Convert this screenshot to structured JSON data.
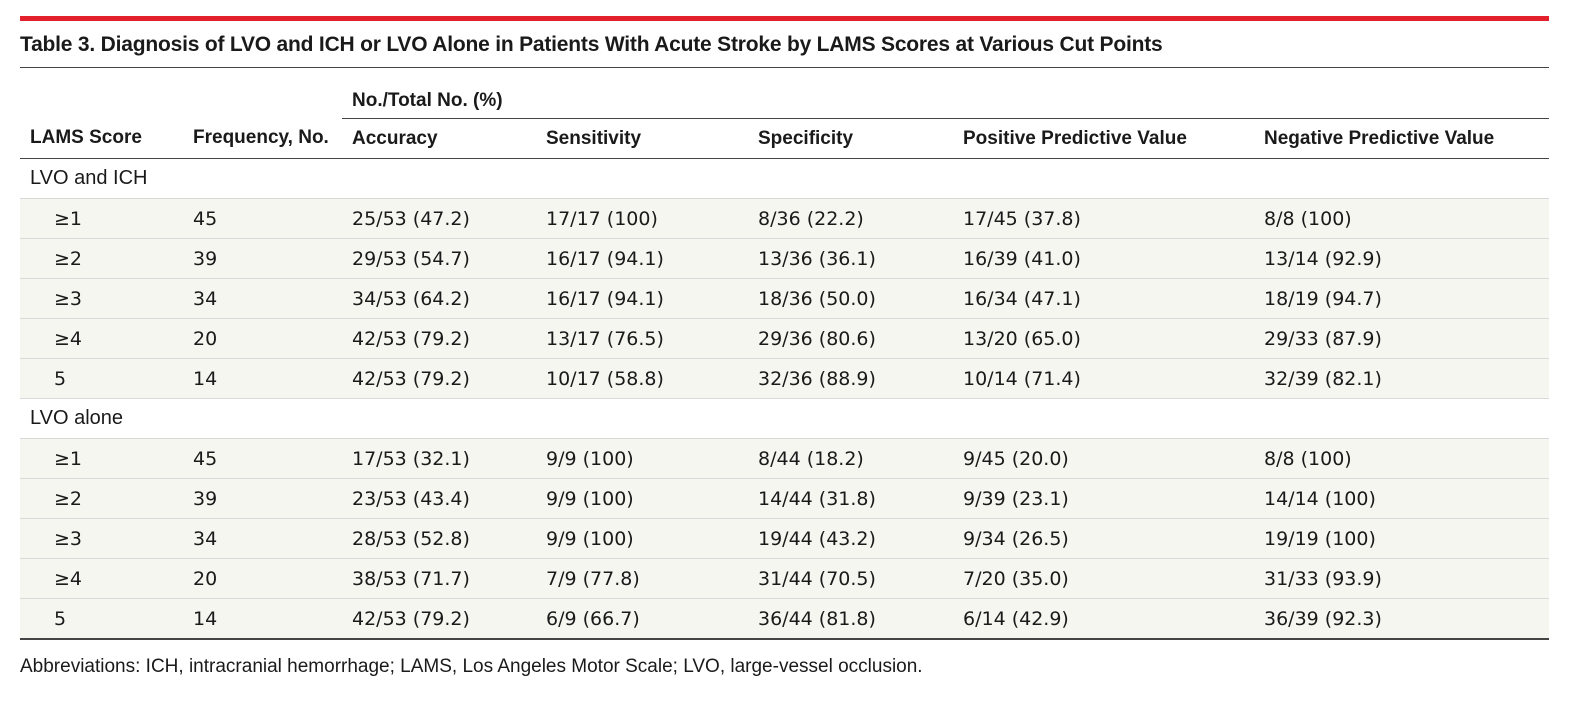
{
  "title": "Table 3. Diagnosis of LVO and ICH or LVO Alone in Patients With Acute Stroke by LAMS Scores at Various Cut Points",
  "group_header": "No./Total No. (%)",
  "columns": [
    "LAMS Score",
    "Frequency, No.",
    "Accuracy",
    "Sensitivity",
    "Specificity",
    "Positive Predictive Value",
    "Negative Predictive Value"
  ],
  "sections": [
    {
      "label": "LVO and ICH",
      "rows": [
        [
          "≥1",
          "45",
          "25/53 (47.2)",
          "17/17 (100)",
          "8/36 (22.2)",
          "17/45 (37.8)",
          "8/8 (100)"
        ],
        [
          "≥2",
          "39",
          "29/53 (54.7)",
          "16/17 (94.1)",
          "13/36 (36.1)",
          "16/39 (41.0)",
          "13/14 (92.9)"
        ],
        [
          "≥3",
          "34",
          "34/53 (64.2)",
          "16/17 (94.1)",
          "18/36 (50.0)",
          "16/34 (47.1)",
          "18/19 (94.7)"
        ],
        [
          "≥4",
          "20",
          "42/53 (79.2)",
          "13/17 (76.5)",
          "29/36 (80.6)",
          "13/20 (65.0)",
          "29/33 (87.9)"
        ],
        [
          "5",
          "14",
          "42/53 (79.2)",
          "10/17 (58.8)",
          "32/36 (88.9)",
          "10/14 (71.4)",
          "32/39 (82.1)"
        ]
      ]
    },
    {
      "label": "LVO alone",
      "rows": [
        [
          "≥1",
          "45",
          "17/53 (32.1)",
          "9/9 (100)",
          "8/44 (18.2)",
          "9/45 (20.0)",
          "8/8 (100)"
        ],
        [
          "≥2",
          "39",
          "23/53 (43.4)",
          "9/9 (100)",
          "14/44 (31.8)",
          "9/39 (23.1)",
          "14/14 (100)"
        ],
        [
          "≥3",
          "34",
          "28/53 (52.8)",
          "9/9 (100)",
          "19/44 (43.2)",
          "9/34 (26.5)",
          "19/19 (100)"
        ],
        [
          "≥4",
          "20",
          "38/53 (71.7)",
          "7/9 (77.8)",
          "31/44 (70.5)",
          "7/20 (35.0)",
          "31/33 (93.9)"
        ],
        [
          "5",
          "14",
          "42/53 (79.2)",
          "6/9 (66.7)",
          "36/44 (81.8)",
          "6/14 (42.9)",
          "36/39 (92.3)"
        ]
      ]
    }
  ],
  "footnote": "Abbreviations: ICH, intracranial hemorrhage; LAMS, Los Angeles Motor Scale; LVO, large-vessel occlusion.",
  "colors": {
    "accent_bar": "#e3212d",
    "row_shade": "#f6f6f1"
  }
}
